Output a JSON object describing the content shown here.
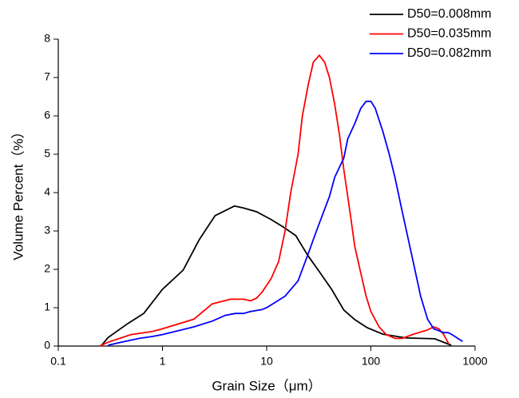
{
  "chart_data": {
    "type": "line",
    "xlabel": "Grain Size（μm）",
    "ylabel": "Volume Percent（%）",
    "xscale": "log",
    "xlim": [
      0.1,
      1000
    ],
    "xticks": [
      0.1,
      1,
      10,
      100,
      1000
    ],
    "ylim": [
      0,
      8
    ],
    "yticks": [
      0,
      1,
      2,
      3,
      4,
      5,
      6,
      7,
      8
    ],
    "legend": "top-right",
    "series": [
      {
        "name": "D50=0.008mm",
        "color": "#000000",
        "x": [
          0.26,
          0.3,
          0.46,
          0.66,
          1,
          1.58,
          2.25,
          3.2,
          4.9,
          6,
          8,
          11,
          14.5,
          19,
          25,
          32,
          42,
          55,
          70,
          92,
          130,
          220,
          410,
          590
        ],
        "values": [
          0.02,
          0.22,
          0.58,
          0.85,
          1.48,
          1.98,
          2.77,
          3.4,
          3.65,
          3.6,
          3.5,
          3.3,
          3.1,
          2.88,
          2.35,
          1.94,
          1.48,
          0.94,
          0.69,
          0.48,
          0.31,
          0.21,
          0.19,
          0.02
        ]
      },
      {
        "name": "D50=0.035mm",
        "color": "#ff0000",
        "x": [
          0.25,
          0.3,
          0.5,
          0.8,
          1,
          2,
          3,
          4.5,
          6,
          7,
          8,
          9,
          11,
          13,
          15,
          17,
          20,
          22,
          25,
          28,
          32,
          36,
          40,
          45,
          50,
          55,
          63,
          70,
          80,
          90,
          100,
          120,
          140,
          170,
          200,
          250,
          350,
          400,
          450,
          500,
          560
        ],
        "values": [
          0,
          0.1,
          0.3,
          0.38,
          0.45,
          0.7,
          1.1,
          1.22,
          1.22,
          1.18,
          1.25,
          1.4,
          1.75,
          2.2,
          3,
          4,
          5,
          6,
          6.8,
          7.4,
          7.58,
          7.4,
          7,
          6.3,
          5.5,
          4.6,
          3.5,
          2.6,
          1.9,
          1.3,
          0.9,
          0.5,
          0.3,
          0.2,
          0.2,
          0.3,
          0.42,
          0.5,
          0.45,
          0.3,
          0.05
        ]
      },
      {
        "name": "D50=0.082mm",
        "color": "#0000ff",
        "x": [
          0.3,
          0.4,
          0.6,
          0.8,
          1,
          2,
          3,
          4,
          5,
          6,
          7,
          9,
          10,
          15,
          20,
          25,
          30,
          40,
          45,
          55,
          60,
          70,
          80,
          90,
          100,
          110,
          130,
          150,
          170,
          200,
          250,
          300,
          350,
          400,
          500,
          550,
          600,
          700,
          760
        ],
        "values": [
          0.02,
          0.1,
          0.2,
          0.25,
          0.3,
          0.5,
          0.65,
          0.8,
          0.85,
          0.85,
          0.9,
          0.95,
          1,
          1.3,
          1.7,
          2.4,
          3,
          3.9,
          4.4,
          4.9,
          5.4,
          5.8,
          6.2,
          6.38,
          6.38,
          6.2,
          5.6,
          5,
          4.4,
          3.5,
          2.3,
          1.3,
          0.7,
          0.45,
          0.35,
          0.35,
          0.3,
          0.18,
          0.12
        ]
      }
    ]
  }
}
